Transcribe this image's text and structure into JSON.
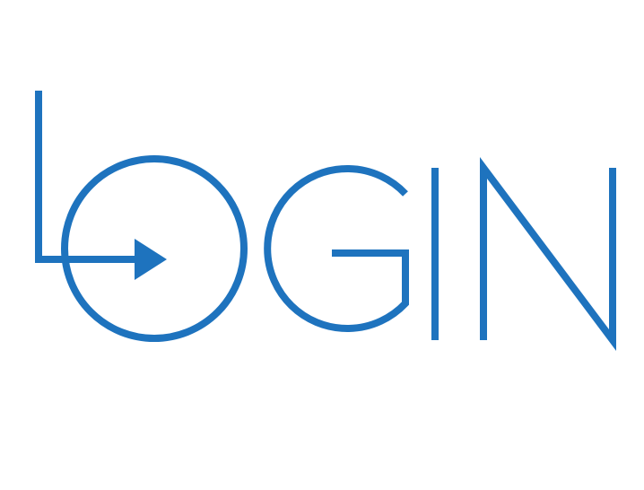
{
  "logo": {
    "text": "LOGIN",
    "color": "#1E73BE",
    "icon": "login-arrow-icon"
  }
}
